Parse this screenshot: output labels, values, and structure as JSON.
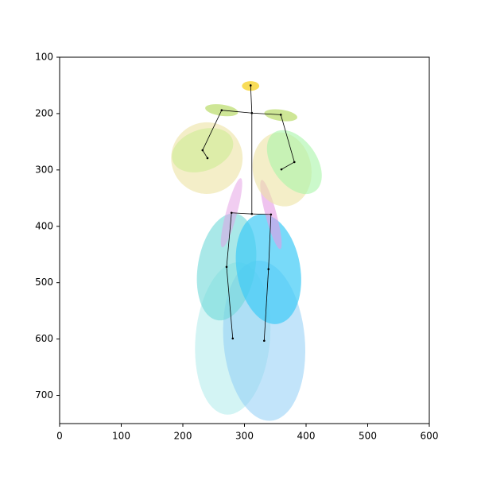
{
  "chart_data": {
    "type": "pose",
    "xlim": [
      0,
      600
    ],
    "xticks": [
      0,
      100,
      200,
      300,
      400,
      500,
      600
    ],
    "ylim": [
      750,
      100
    ],
    "yticks": [
      100,
      200,
      300,
      400,
      500,
      600,
      700
    ],
    "ellipses": [
      {
        "x": 281,
        "y": 599,
        "w": 121,
        "h": 271,
        "angle": 5,
        "color": "#b5ecec",
        "alpha": 0.6
      },
      {
        "x": 332,
        "y": 603,
        "w": 132,
        "h": 285,
        "angle": -5,
        "color": "#8fcdf5",
        "alpha": 0.55
      },
      {
        "x": 271,
        "y": 472,
        "w": 93,
        "h": 192,
        "angle": 10,
        "color": "#6fd8d8",
        "alpha": 0.6
      },
      {
        "x": 339,
        "y": 476,
        "w": 103,
        "h": 197,
        "angle": -10,
        "color": "#3fcbf7",
        "alpha": 0.7
      },
      {
        "x": 279,
        "y": 376,
        "w": 18,
        "h": 127,
        "angle": 15,
        "color": "#e49be4",
        "alpha": 0.5
      },
      {
        "x": 343,
        "y": 379,
        "w": 18,
        "h": 127,
        "angle": -15,
        "color": "#e49be4",
        "alpha": 0.6
      },
      {
        "x": 239,
        "y": 279,
        "w": 116,
        "h": 127,
        "angle": 0,
        "color": "#ece3a3",
        "alpha": 0.6
      },
      {
        "x": 361,
        "y": 299,
        "w": 95,
        "h": 132,
        "angle": -10,
        "color": "#ece3a3",
        "alpha": 0.6
      },
      {
        "x": 381,
        "y": 286,
        "w": 72,
        "h": 127,
        "angle": -35,
        "color": "#a9f5a9",
        "alpha": 0.6
      },
      {
        "x": 232,
        "y": 265,
        "w": 103,
        "h": 73,
        "angle": -20,
        "color": "#c6eb8a",
        "alpha": 0.5
      },
      {
        "x": 263,
        "y": 194,
        "w": 54,
        "h": 20,
        "angle": 8,
        "color": "#b9dc6a",
        "alpha": 0.7
      },
      {
        "x": 359,
        "y": 203,
        "w": 54,
        "h": 20,
        "angle": 8,
        "color": "#b9dc6a",
        "alpha": 0.7
      },
      {
        "x": 310,
        "y": 151,
        "w": 28,
        "h": 17,
        "angle": 0,
        "color": "#f7d63a",
        "alpha": 0.85
      }
    ],
    "joints": {
      "x": [
        310,
        312,
        263,
        359,
        232,
        240,
        381,
        360,
        312,
        279,
        343,
        271,
        339,
        281,
        332
      ],
      "y": [
        150,
        199,
        194,
        202,
        265,
        279,
        286,
        299,
        378,
        376,
        379,
        472,
        476,
        599,
        603
      ]
    },
    "edges": [
      [
        0,
        1
      ],
      [
        1,
        2
      ],
      [
        1,
        3
      ],
      [
        2,
        4
      ],
      [
        4,
        5
      ],
      [
        3,
        6
      ],
      [
        6,
        7
      ],
      [
        1,
        8
      ],
      [
        8,
        9
      ],
      [
        8,
        10
      ],
      [
        9,
        11
      ],
      [
        11,
        13
      ],
      [
        10,
        12
      ],
      [
        12,
        14
      ]
    ]
  }
}
